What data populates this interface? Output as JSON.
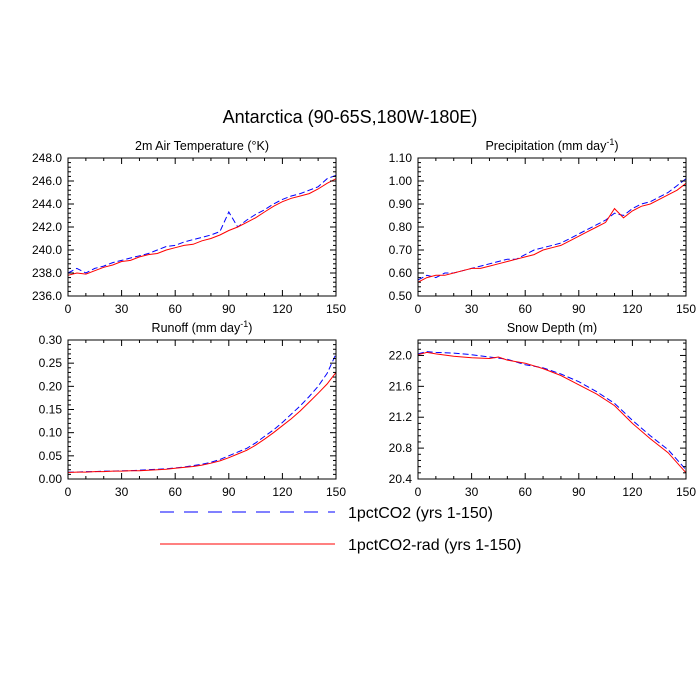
{
  "figure": {
    "title": "Antarctica (90-65S,180W-180E)",
    "legend": [
      {
        "label": "1pctCO2 (yrs 1-150)",
        "color": "#0000ff",
        "dash": "dashed"
      },
      {
        "label": "1pctCO2-rad (yrs 1-150)",
        "color": "#ff0000",
        "dash": "solid"
      }
    ]
  },
  "chart_data": [
    {
      "type": "line",
      "title": "2m Air Temperature (°K)",
      "xlim": [
        0,
        150
      ],
      "xticks": [
        "0",
        "30",
        "60",
        "90",
        "120",
        "150"
      ],
      "ylim": [
        236.0,
        248.0
      ],
      "yticks": [
        "236.0",
        "238.0",
        "240.0",
        "242.0",
        "244.0",
        "246.0",
        "248.0"
      ],
      "series": [
        {
          "name": "1pctCO2 (yrs 1-150)",
          "color": "#0000ff",
          "points": [
            [
              0,
              238.0
            ],
            [
              5,
              238.4
            ],
            [
              10,
              238.0
            ],
            [
              15,
              238.4
            ],
            [
              20,
              238.6
            ],
            [
              25,
              238.9
            ],
            [
              30,
              239.1
            ],
            [
              35,
              239.3
            ],
            [
              40,
              239.5
            ],
            [
              45,
              239.7
            ],
            [
              50,
              240.0
            ],
            [
              55,
              240.3
            ],
            [
              60,
              240.4
            ],
            [
              65,
              240.7
            ],
            [
              70,
              240.9
            ],
            [
              75,
              241.1
            ],
            [
              80,
              241.3
            ],
            [
              85,
              241.6
            ],
            [
              90,
              243.3
            ],
            [
              95,
              242.0
            ],
            [
              100,
              242.6
            ],
            [
              105,
              243.1
            ],
            [
              110,
              243.5
            ],
            [
              115,
              244.0
            ],
            [
              120,
              244.4
            ],
            [
              125,
              244.7
            ],
            [
              130,
              244.9
            ],
            [
              135,
              245.2
            ],
            [
              140,
              245.5
            ],
            [
              145,
              246.2
            ],
            [
              150,
              246.5
            ]
          ]
        },
        {
          "name": "1pctCO2-rad (yrs 1-150)",
          "color": "#ff0000",
          "points": [
            [
              0,
              237.8
            ],
            [
              5,
              238.0
            ],
            [
              10,
              237.9
            ],
            [
              15,
              238.2
            ],
            [
              20,
              238.5
            ],
            [
              25,
              238.7
            ],
            [
              30,
              239.0
            ],
            [
              35,
              239.1
            ],
            [
              40,
              239.4
            ],
            [
              45,
              239.6
            ],
            [
              50,
              239.7
            ],
            [
              55,
              240.0
            ],
            [
              60,
              240.2
            ],
            [
              65,
              240.4
            ],
            [
              70,
              240.5
            ],
            [
              75,
              240.8
            ],
            [
              80,
              241.0
            ],
            [
              85,
              241.3
            ],
            [
              90,
              241.7
            ],
            [
              95,
              242.0
            ],
            [
              100,
              242.4
            ],
            [
              105,
              242.8
            ],
            [
              110,
              243.3
            ],
            [
              115,
              243.8
            ],
            [
              120,
              244.2
            ],
            [
              125,
              244.5
            ],
            [
              130,
              244.7
            ],
            [
              135,
              244.9
            ],
            [
              140,
              245.3
            ],
            [
              145,
              245.8
            ],
            [
              150,
              246.2
            ]
          ]
        }
      ]
    },
    {
      "type": "line",
      "title": "Precipitation (mm day",
      "title_sup": "-1",
      "title_end": ")",
      "xlim": [
        0,
        150
      ],
      "xticks": [
        "0",
        "30",
        "60",
        "90",
        "120",
        "150"
      ],
      "ylim": [
        0.5,
        1.1
      ],
      "yticks": [
        "0.50",
        "0.60",
        "0.70",
        "0.80",
        "0.90",
        "1.00",
        "1.10"
      ],
      "series": [
        {
          "name": "1pctCO2 (yrs 1-150)",
          "color": "#0000ff",
          "points": [
            [
              0,
              0.57
            ],
            [
              5,
              0.59
            ],
            [
              10,
              0.58
            ],
            [
              15,
              0.6
            ],
            [
              20,
              0.6
            ],
            [
              25,
              0.61
            ],
            [
              30,
              0.62
            ],
            [
              35,
              0.63
            ],
            [
              40,
              0.64
            ],
            [
              45,
              0.65
            ],
            [
              50,
              0.66
            ],
            [
              55,
              0.66
            ],
            [
              60,
              0.68
            ],
            [
              65,
              0.7
            ],
            [
              70,
              0.71
            ],
            [
              75,
              0.72
            ],
            [
              80,
              0.73
            ],
            [
              85,
              0.75
            ],
            [
              90,
              0.77
            ],
            [
              95,
              0.79
            ],
            [
              100,
              0.81
            ],
            [
              105,
              0.83
            ],
            [
              110,
              0.86
            ],
            [
              115,
              0.85
            ],
            [
              120,
              0.88
            ],
            [
              125,
              0.9
            ],
            [
              130,
              0.91
            ],
            [
              135,
              0.93
            ],
            [
              140,
              0.95
            ],
            [
              145,
              0.98
            ],
            [
              150,
              1.01
            ]
          ]
        },
        {
          "name": "1pctCO2-rad (yrs 1-150)",
          "color": "#ff0000",
          "points": [
            [
              0,
              0.56
            ],
            [
              5,
              0.58
            ],
            [
              10,
              0.59
            ],
            [
              15,
              0.59
            ],
            [
              20,
              0.6
            ],
            [
              25,
              0.61
            ],
            [
              30,
              0.62
            ],
            [
              35,
              0.62
            ],
            [
              40,
              0.63
            ],
            [
              45,
              0.64
            ],
            [
              50,
              0.65
            ],
            [
              55,
              0.66
            ],
            [
              60,
              0.67
            ],
            [
              65,
              0.68
            ],
            [
              70,
              0.7
            ],
            [
              75,
              0.71
            ],
            [
              80,
              0.72
            ],
            [
              85,
              0.74
            ],
            [
              90,
              0.76
            ],
            [
              95,
              0.78
            ],
            [
              100,
              0.8
            ],
            [
              105,
              0.82
            ],
            [
              110,
              0.88
            ],
            [
              115,
              0.84
            ],
            [
              120,
              0.87
            ],
            [
              125,
              0.89
            ],
            [
              130,
              0.9
            ],
            [
              135,
              0.92
            ],
            [
              140,
              0.94
            ],
            [
              145,
              0.96
            ],
            [
              150,
              0.99
            ]
          ]
        }
      ]
    },
    {
      "type": "line",
      "title": "Runoff (mm day",
      "title_sup": "-1",
      "title_end": ")",
      "xlim": [
        0,
        150
      ],
      "xticks": [
        "0",
        "30",
        "60",
        "90",
        "120",
        "150"
      ],
      "ylim": [
        0.0,
        0.3
      ],
      "yticks": [
        "0.00",
        "0.05",
        "0.10",
        "0.15",
        "0.20",
        "0.25",
        "0.30"
      ],
      "series": [
        {
          "name": "1pctCO2 (yrs 1-150)",
          "color": "#0000ff",
          "points": [
            [
              0,
              0.015
            ],
            [
              5,
              0.015
            ],
            [
              10,
              0.016
            ],
            [
              15,
              0.016
            ],
            [
              20,
              0.017
            ],
            [
              25,
              0.017
            ],
            [
              30,
              0.018
            ],
            [
              35,
              0.018
            ],
            [
              40,
              0.019
            ],
            [
              45,
              0.02
            ],
            [
              50,
              0.021
            ],
            [
              55,
              0.022
            ],
            [
              60,
              0.024
            ],
            [
              65,
              0.026
            ],
            [
              70,
              0.029
            ],
            [
              75,
              0.032
            ],
            [
              80,
              0.036
            ],
            [
              85,
              0.042
            ],
            [
              90,
              0.05
            ],
            [
              95,
              0.058
            ],
            [
              100,
              0.066
            ],
            [
              105,
              0.078
            ],
            [
              110,
              0.092
            ],
            [
              115,
              0.106
            ],
            [
              120,
              0.122
            ],
            [
              125,
              0.14
            ],
            [
              130,
              0.158
            ],
            [
              135,
              0.178
            ],
            [
              140,
              0.2
            ],
            [
              145,
              0.228
            ],
            [
              150,
              0.27
            ]
          ]
        },
        {
          "name": "1pctCO2-rad (yrs 1-150)",
          "color": "#ff0000",
          "points": [
            [
              0,
              0.014
            ],
            [
              5,
              0.015
            ],
            [
              10,
              0.015
            ],
            [
              15,
              0.016
            ],
            [
              20,
              0.016
            ],
            [
              25,
              0.017
            ],
            [
              30,
              0.017
            ],
            [
              35,
              0.018
            ],
            [
              40,
              0.018
            ],
            [
              45,
              0.019
            ],
            [
              50,
              0.02
            ],
            [
              55,
              0.021
            ],
            [
              60,
              0.023
            ],
            [
              65,
              0.025
            ],
            [
              70,
              0.027
            ],
            [
              75,
              0.03
            ],
            [
              80,
              0.034
            ],
            [
              85,
              0.039
            ],
            [
              90,
              0.046
            ],
            [
              95,
              0.054
            ],
            [
              100,
              0.062
            ],
            [
              105,
              0.073
            ],
            [
              110,
              0.086
            ],
            [
              115,
              0.1
            ],
            [
              120,
              0.115
            ],
            [
              125,
              0.13
            ],
            [
              130,
              0.147
            ],
            [
              135,
              0.166
            ],
            [
              140,
              0.185
            ],
            [
              145,
              0.205
            ],
            [
              150,
              0.23
            ]
          ]
        }
      ]
    },
    {
      "type": "line",
      "title": "Snow Depth (m)",
      "xlim": [
        0,
        150
      ],
      "xticks": [
        "0",
        "30",
        "60",
        "90",
        "120",
        "150"
      ],
      "ylim": [
        20.4,
        22.2
      ],
      "yticks": [
        "20.4",
        "20.8",
        "21.2",
        "21.6",
        "22.0"
      ],
      "series": [
        {
          "name": "1pctCO2 (yrs 1-150)",
          "color": "#0000ff",
          "points": [
            [
              0,
              22.02
            ],
            [
              5,
              22.05
            ],
            [
              10,
              22.04
            ],
            [
              20,
              22.03
            ],
            [
              30,
              22.01
            ],
            [
              40,
              21.98
            ],
            [
              50,
              21.95
            ],
            [
              60,
              21.88
            ],
            [
              70,
              21.84
            ],
            [
              80,
              21.76
            ],
            [
              90,
              21.66
            ],
            [
              100,
              21.53
            ],
            [
              110,
              21.38
            ],
            [
              120,
              21.16
            ],
            [
              130,
              20.96
            ],
            [
              140,
              20.78
            ],
            [
              150,
              20.52
            ]
          ]
        },
        {
          "name": "1pctCO2-rad (yrs 1-150)",
          "color": "#ff0000",
          "points": [
            [
              0,
              22.01
            ],
            [
              5,
              22.04
            ],
            [
              10,
              22.02
            ],
            [
              20,
              21.99
            ],
            [
              30,
              21.97
            ],
            [
              40,
              21.96
            ],
            [
              45,
              21.98
            ],
            [
              50,
              21.94
            ],
            [
              60,
              21.9
            ],
            [
              70,
              21.83
            ],
            [
              80,
              21.74
            ],
            [
              90,
              21.62
            ],
            [
              100,
              21.5
            ],
            [
              110,
              21.35
            ],
            [
              120,
              21.12
            ],
            [
              130,
              20.92
            ],
            [
              140,
              20.74
            ],
            [
              150,
              20.48
            ]
          ]
        }
      ]
    }
  ]
}
